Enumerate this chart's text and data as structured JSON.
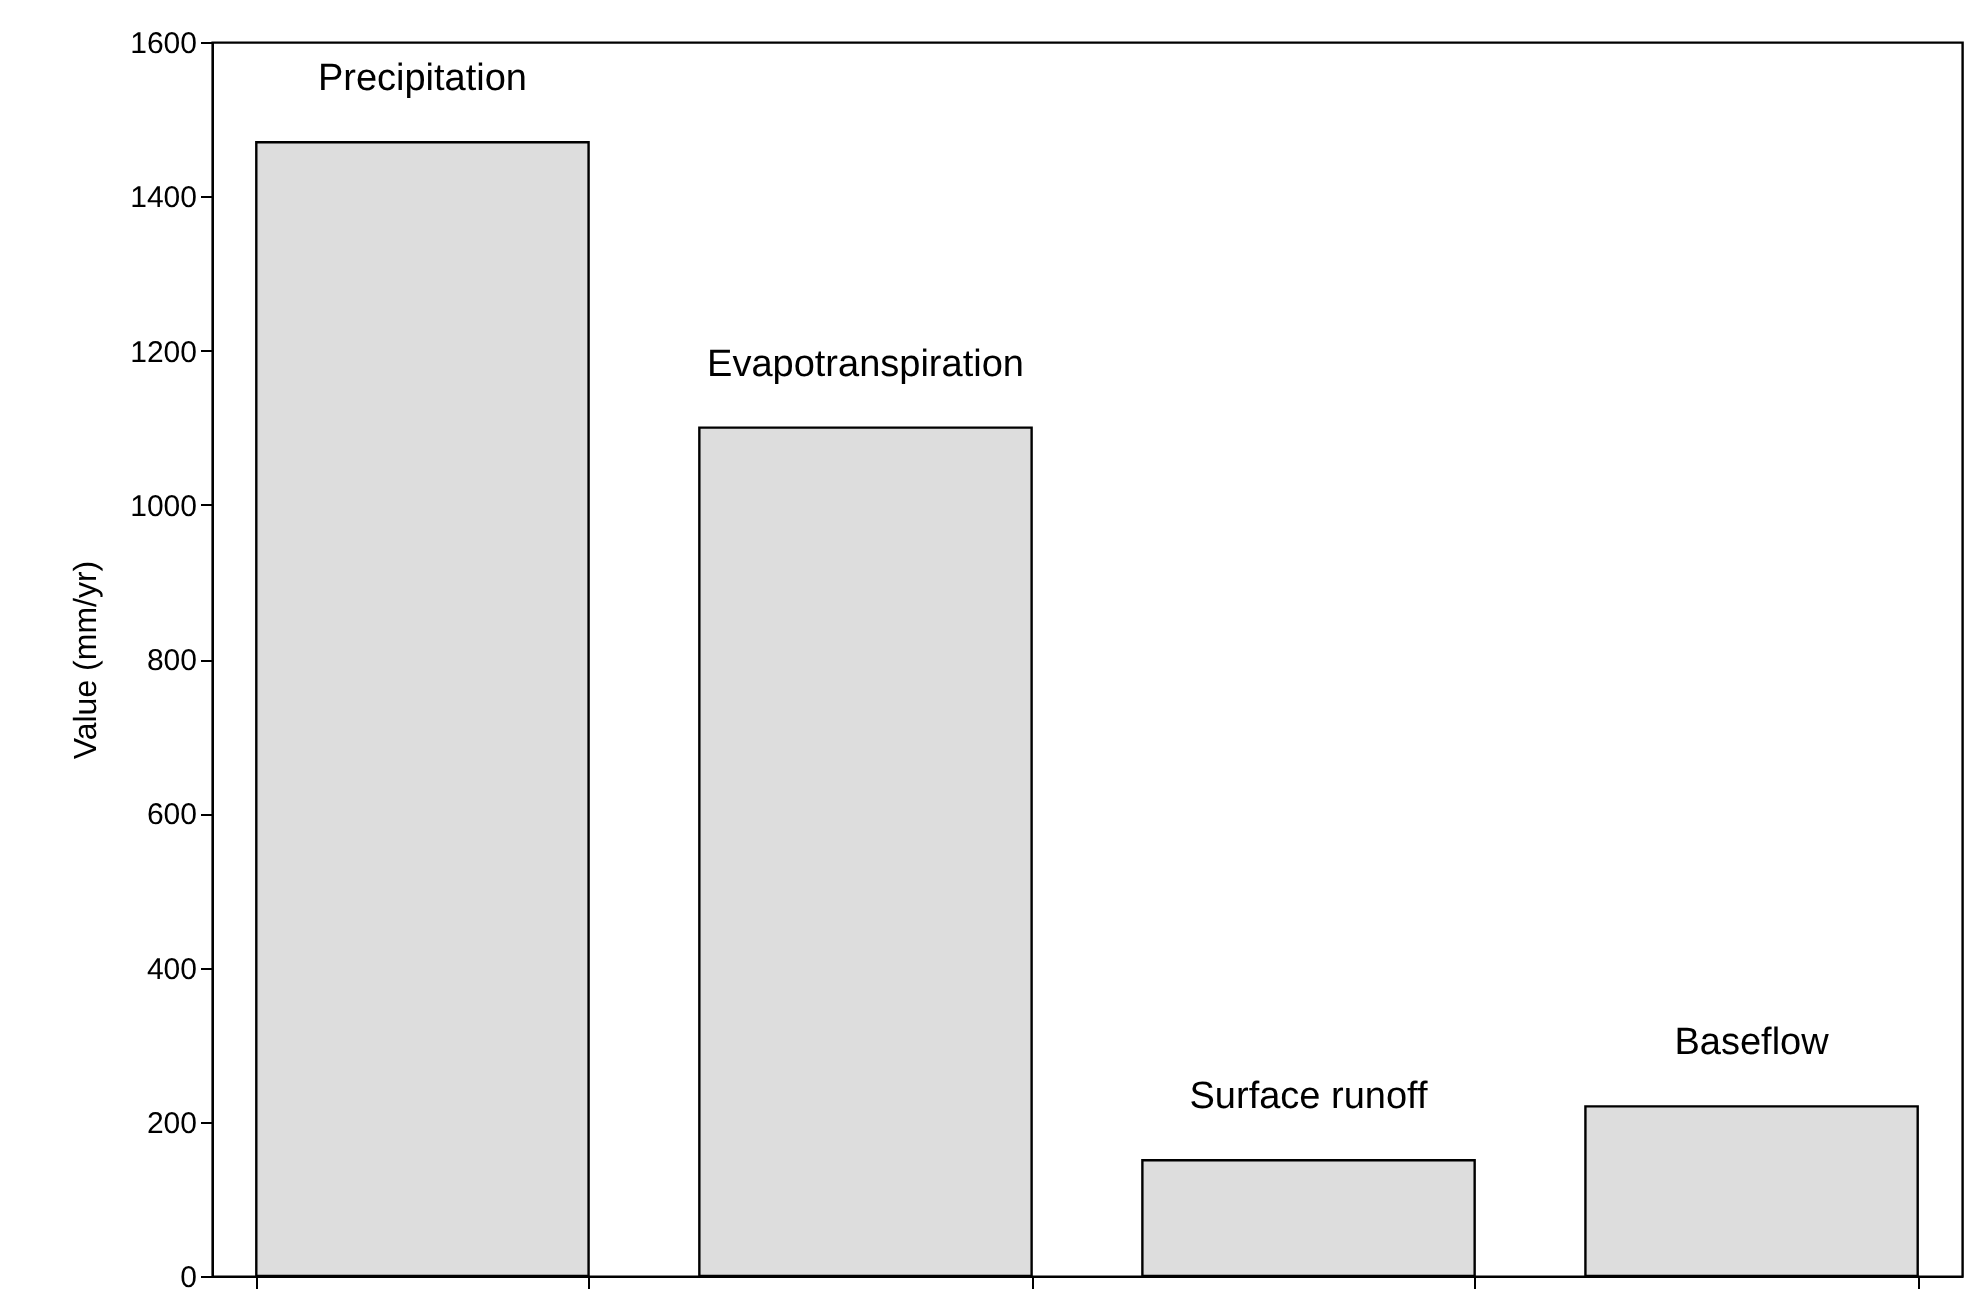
{
  "chart_data": {
    "type": "bar",
    "ylabel": "Value (mm/yr)",
    "categories": [
      "Precipitation",
      "Evapotranspiration",
      "Surface runoff",
      "Baseflow"
    ],
    "values": [
      1470,
      1100,
      150,
      220
    ],
    "color": "#dddddd",
    "ylim": [
      0,
      1600
    ],
    "yticks": [
      0,
      200,
      400,
      600,
      800,
      1000,
      1200,
      1400,
      1600
    ],
    "grid": false,
    "tick_labels": "y"
  }
}
